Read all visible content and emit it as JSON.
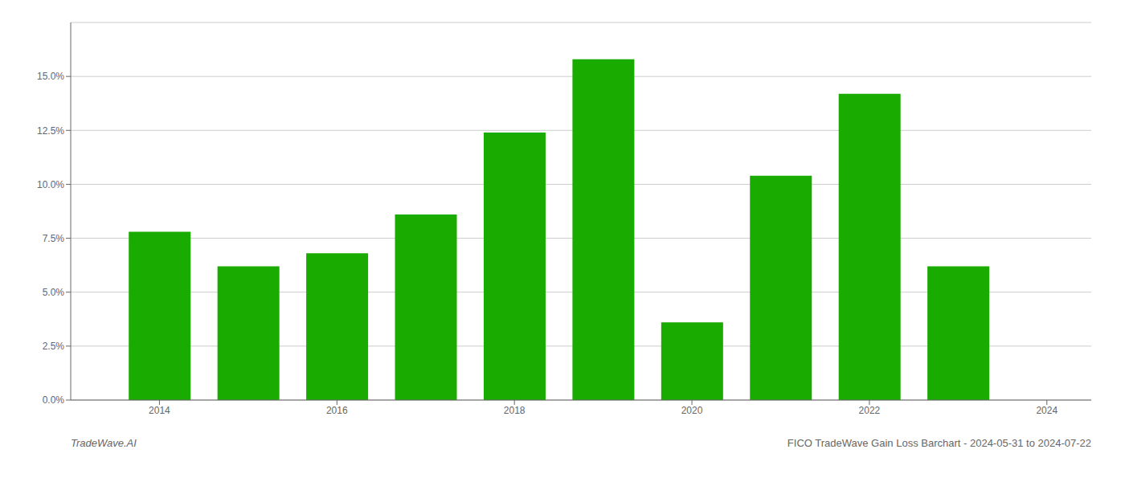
{
  "chart_data": {
    "type": "bar",
    "x": [
      2014,
      2015,
      2016,
      2017,
      2018,
      2019,
      2020,
      2021,
      2022,
      2023
    ],
    "values": [
      0.078,
      0.062,
      0.068,
      0.086,
      0.124,
      0.158,
      0.036,
      0.104,
      0.142,
      0.062
    ],
    "color": "#1aab00",
    "xlim": [
      2013.0,
      2024.5
    ],
    "xticks": [
      2014,
      2016,
      2018,
      2020,
      2022,
      2024
    ],
    "ylim": [
      0,
      0.175
    ],
    "yticks": [
      {
        "value": 0.0,
        "label": "0.0%"
      },
      {
        "value": 0.025,
        "label": "2.5%"
      },
      {
        "value": 0.05,
        "label": "5.0%"
      },
      {
        "value": 0.075,
        "label": "7.5%"
      },
      {
        "value": 0.1,
        "label": "10.0%"
      },
      {
        "value": 0.125,
        "label": "12.5%"
      },
      {
        "value": 0.15,
        "label": "15.0%"
      }
    ],
    "grid": true,
    "annotations": [
      "TradeWave.AI",
      "FICO TradeWave Gain Loss Barchart - 2024-05-31 to 2024-07-22"
    ]
  }
}
